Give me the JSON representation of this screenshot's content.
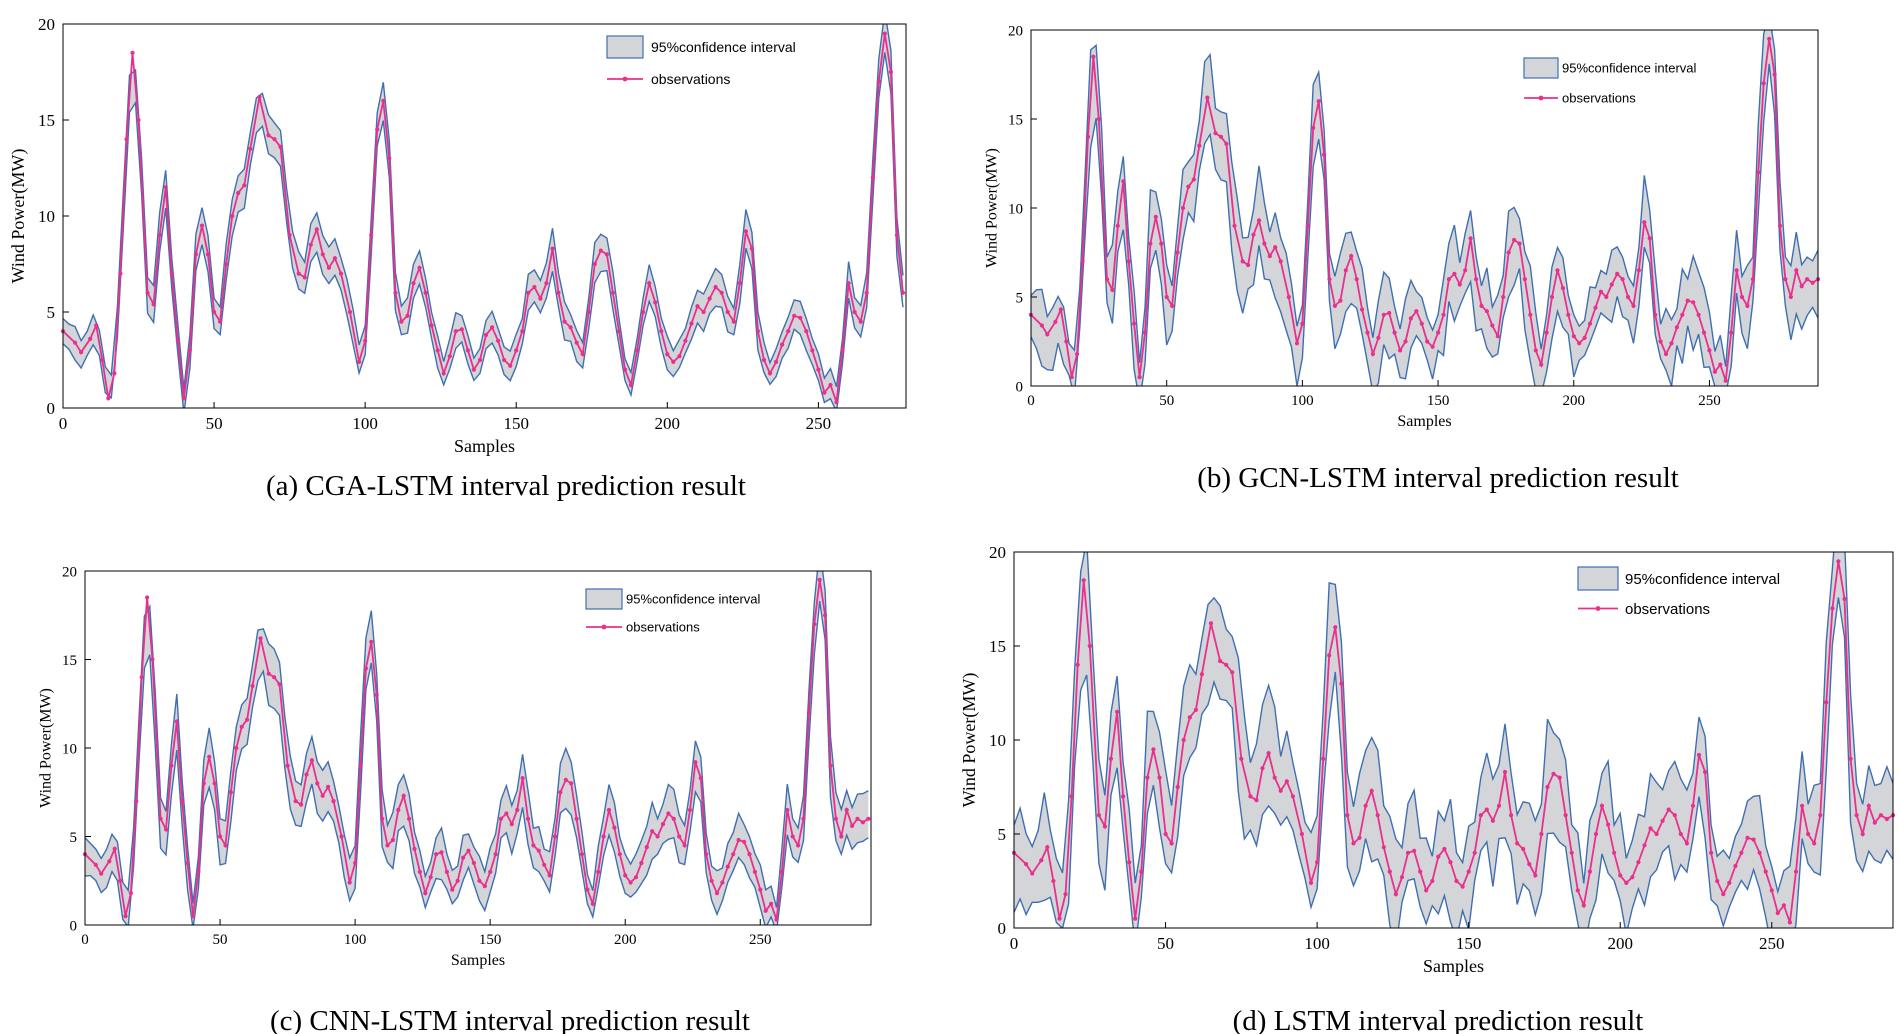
{
  "colors": {
    "band_fill": "#d3d5d9",
    "band_edge": "#3f6fb0",
    "obs_line": "#e8308c",
    "axis": "#000000"
  },
  "chart_data": [
    {
      "id": "a",
      "type": "line",
      "caption": "(a) CGA-LSTM interval prediction result",
      "xlabel": "Samples",
      "ylabel": "Wind Power(MW)",
      "xlim": [
        0,
        279
      ],
      "ylim": [
        0,
        20
      ],
      "xticks": [
        0,
        50,
        100,
        150,
        200,
        250
      ],
      "yticks": [
        0,
        5,
        10,
        15,
        20
      ],
      "legend": {
        "band_label": "95%confidence interval",
        "obs_label": "observations"
      },
      "band_width": 0.85,
      "band_jitter": 0.25,
      "band_seed": 11
    },
    {
      "id": "b",
      "type": "line",
      "caption": "(b) GCN-LSTM interval prediction result",
      "xlabel": "Samples",
      "ylabel": "Wind Power(MW)",
      "xlim": [
        0,
        290
      ],
      "ylim": [
        0,
        20
      ],
      "xticks": [
        0,
        50,
        100,
        150,
        200,
        250
      ],
      "yticks": [
        0,
        5,
        10,
        15,
        20
      ],
      "legend": {
        "band_label": "95%confidence interval",
        "obs_label": "observations"
      },
      "band_width": 1.4,
      "band_jitter": 1.2,
      "band_seed": 23
    },
    {
      "id": "c",
      "type": "line",
      "caption": "(c) CNN-LSTM interval prediction result",
      "xlabel": "Samples",
      "ylabel": "Wind Power(MW)",
      "xlim": [
        0,
        291
      ],
      "ylim": [
        0,
        20
      ],
      "xticks": [
        0,
        50,
        100,
        150,
        200,
        250
      ],
      "yticks": [
        0,
        5,
        10,
        15,
        20
      ],
      "legend": {
        "band_label": "95%confidence interval",
        "obs_label": "observations"
      },
      "band_width": 1.2,
      "band_jitter": 0.45,
      "band_seed": 37
    },
    {
      "id": "d",
      "type": "line",
      "caption": "(d) LSTM interval prediction result",
      "xlabel": "Samples",
      "ylabel": "Wind Power(MW)",
      "xlim": [
        0,
        290
      ],
      "ylim": [
        0,
        20
      ],
      "xticks": [
        0,
        50,
        100,
        150,
        200,
        250
      ],
      "yticks": [
        0,
        5,
        10,
        15,
        20
      ],
      "legend": {
        "band_label": "95%confidence interval",
        "obs_label": "observations"
      },
      "band_width": 1.9,
      "band_jitter": 1.4,
      "band_seed": 51
    }
  ],
  "observations": [
    [
      0,
      4.0
    ],
    [
      4,
      3.4
    ],
    [
      6,
      2.9
    ],
    [
      9,
      3.6
    ],
    [
      11,
      4.3
    ],
    [
      13,
      2.5
    ],
    [
      15,
      0.5
    ],
    [
      17,
      1.8
    ],
    [
      19,
      7.0
    ],
    [
      21,
      14.0
    ],
    [
      23,
      18.5
    ],
    [
      25,
      15.0
    ],
    [
      28,
      6.0
    ],
    [
      30,
      5.4
    ],
    [
      32,
      9.0
    ],
    [
      34,
      11.5
    ],
    [
      36,
      7.0
    ],
    [
      38,
      3.5
    ],
    [
      40,
      0.5
    ],
    [
      42,
      3.0
    ],
    [
      44,
      8.0
    ],
    [
      46,
      9.5
    ],
    [
      48,
      8.0
    ],
    [
      50,
      5.0
    ],
    [
      52,
      4.5
    ],
    [
      54,
      7.5
    ],
    [
      56,
      10.0
    ],
    [
      58,
      11.2
    ],
    [
      60,
      11.6
    ],
    [
      62,
      13.5
    ],
    [
      65,
      16.2
    ],
    [
      68,
      14.2
    ],
    [
      70,
      14.0
    ],
    [
      72,
      13.6
    ],
    [
      75,
      9.0
    ],
    [
      78,
      7.0
    ],
    [
      80,
      6.8
    ],
    [
      82,
      8.5
    ],
    [
      84,
      9.3
    ],
    [
      86,
      8.0
    ],
    [
      88,
      7.3
    ],
    [
      90,
      7.8
    ],
    [
      92,
      7.0
    ],
    [
      95,
      5.0
    ],
    [
      98,
      2.4
    ],
    [
      100,
      3.5
    ],
    [
      102,
      9.0
    ],
    [
      104,
      14.5
    ],
    [
      106,
      16.0
    ],
    [
      108,
      13.0
    ],
    [
      110,
      6.0
    ],
    [
      112,
      4.5
    ],
    [
      114,
      4.8
    ],
    [
      116,
      6.5
    ],
    [
      118,
      7.3
    ],
    [
      120,
      6.0
    ],
    [
      122,
      4.3
    ],
    [
      124,
      3.0
    ],
    [
      126,
      1.8
    ],
    [
      128,
      2.7
    ],
    [
      130,
      4.0
    ],
    [
      132,
      4.1
    ],
    [
      134,
      3.0
    ],
    [
      136,
      2.0
    ],
    [
      138,
      2.5
    ],
    [
      140,
      3.8
    ],
    [
      142,
      4.2
    ],
    [
      144,
      3.5
    ],
    [
      146,
      2.5
    ],
    [
      148,
      2.2
    ],
    [
      150,
      3.0
    ],
    [
      152,
      4.0
    ],
    [
      154,
      6.0
    ],
    [
      156,
      6.3
    ],
    [
      158,
      5.7
    ],
    [
      160,
      6.5
    ],
    [
      162,
      8.3
    ],
    [
      164,
      6.0
    ],
    [
      166,
      4.5
    ],
    [
      168,
      4.2
    ],
    [
      170,
      3.4
    ],
    [
      172,
      2.8
    ],
    [
      174,
      5.0
    ],
    [
      176,
      7.5
    ],
    [
      178,
      8.2
    ],
    [
      180,
      8.0
    ],
    [
      182,
      6.0
    ],
    [
      184,
      4.0
    ],
    [
      186,
      2.0
    ],
    [
      188,
      1.2
    ],
    [
      190,
      3.0
    ],
    [
      192,
      5.0
    ],
    [
      194,
      6.5
    ],
    [
      196,
      5.5
    ],
    [
      198,
      4.0
    ],
    [
      200,
      2.8
    ],
    [
      202,
      2.4
    ],
    [
      204,
      2.7
    ],
    [
      206,
      3.5
    ],
    [
      208,
      4.4
    ],
    [
      210,
      5.3
    ],
    [
      212,
      5.0
    ],
    [
      214,
      5.7
    ],
    [
      216,
      6.3
    ],
    [
      218,
      6.0
    ],
    [
      220,
      5.0
    ],
    [
      222,
      4.5
    ],
    [
      224,
      6.5
    ],
    [
      226,
      9.2
    ],
    [
      228,
      8.3
    ],
    [
      230,
      4.0
    ],
    [
      232,
      2.5
    ],
    [
      234,
      1.8
    ],
    [
      236,
      2.4
    ],
    [
      238,
      3.3
    ],
    [
      240,
      4.0
    ],
    [
      242,
      4.8
    ],
    [
      244,
      4.7
    ],
    [
      246,
      4.0
    ],
    [
      248,
      3.0
    ],
    [
      250,
      2.0
    ],
    [
      252,
      0.8
    ],
    [
      254,
      1.2
    ],
    [
      256,
      0.3
    ],
    [
      258,
      3.0
    ],
    [
      260,
      6.5
    ],
    [
      262,
      5.0
    ],
    [
      264,
      4.5
    ],
    [
      266,
      6.0
    ],
    [
      268,
      12.0
    ],
    [
      270,
      17.0
    ],
    [
      272,
      19.5
    ],
    [
      274,
      17.5
    ],
    [
      276,
      9.0
    ],
    [
      278,
      6.0
    ],
    [
      280,
      5.0
    ],
    [
      282,
      6.5
    ],
    [
      284,
      5.6
    ],
    [
      286,
      6.0
    ],
    [
      288,
      5.8
    ],
    [
      290,
      6.0
    ]
  ]
}
